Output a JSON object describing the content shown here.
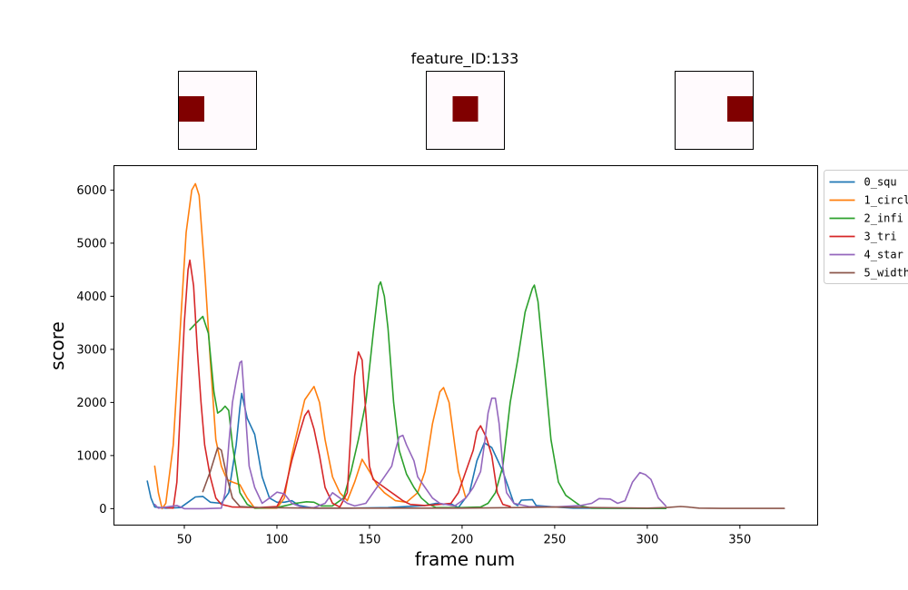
{
  "chart_data": {
    "type": "line",
    "title": "feature_ID:133",
    "xlabel": "frame num",
    "ylabel": "score",
    "xlim": [
      12,
      392
    ],
    "ylim": [
      -310,
      6460
    ],
    "xticks": [
      50,
      100,
      150,
      200,
      250,
      300,
      350
    ],
    "yticks": [
      0,
      1000,
      2000,
      3000,
      4000,
      5000,
      6000
    ],
    "grid": false,
    "legend_position": "outside-right-top",
    "thumbnails": [
      {
        "label": "thumb-left",
        "marker_position": "left",
        "bg_color": "#fffafd",
        "marker_color": "#800000"
      },
      {
        "label": "thumb-center",
        "marker_position": "center",
        "bg_color": "#fffafd",
        "marker_color": "#800000"
      },
      {
        "label": "thumb-right",
        "marker_position": "right",
        "bg_color": "#fffafd",
        "marker_color": "#800000"
      }
    ],
    "series": [
      {
        "name": "0_squ",
        "color": "#1f77b4",
        "points": [
          [
            30,
            520
          ],
          [
            32,
            200
          ],
          [
            34,
            30
          ],
          [
            40,
            10
          ],
          [
            48,
            20
          ],
          [
            52,
            120
          ],
          [
            56,
            220
          ],
          [
            60,
            230
          ],
          [
            64,
            120
          ],
          [
            70,
            100
          ],
          [
            74,
            300
          ],
          [
            78,
            1200
          ],
          [
            80,
            1900
          ],
          [
            81,
            2170
          ],
          [
            84,
            1700
          ],
          [
            86,
            1550
          ],
          [
            88,
            1400
          ],
          [
            92,
            600
          ],
          [
            96,
            200
          ],
          [
            100,
            120
          ],
          [
            104,
            120
          ],
          [
            108,
            150
          ],
          [
            112,
            60
          ],
          [
            120,
            10
          ],
          [
            140,
            10
          ],
          [
            160,
            20
          ],
          [
            180,
            60
          ],
          [
            186,
            100
          ],
          [
            190,
            80
          ],
          [
            194,
            90
          ],
          [
            198,
            20
          ],
          [
            204,
            300
          ],
          [
            208,
            900
          ],
          [
            212,
            1240
          ],
          [
            216,
            1150
          ],
          [
            222,
            700
          ],
          [
            226,
            300
          ],
          [
            228,
            100
          ],
          [
            230,
            60
          ],
          [
            232,
            160
          ],
          [
            238,
            170
          ],
          [
            240,
            60
          ],
          [
            250,
            30
          ],
          [
            260,
            10
          ],
          [
            300,
            5
          ],
          [
            310,
            5
          ]
        ]
      },
      {
        "name": "1_circl",
        "color": "#ff7f0e",
        "points": [
          [
            34,
            800
          ],
          [
            36,
            300
          ],
          [
            38,
            0
          ],
          [
            40,
            100
          ],
          [
            44,
            1200
          ],
          [
            48,
            3500
          ],
          [
            51,
            5200
          ],
          [
            54,
            6000
          ],
          [
            56,
            6120
          ],
          [
            58,
            5900
          ],
          [
            61,
            4500
          ],
          [
            64,
            2800
          ],
          [
            67,
            1300
          ],
          [
            70,
            800
          ],
          [
            73,
            550
          ],
          [
            76,
            500
          ],
          [
            80,
            450
          ],
          [
            84,
            200
          ],
          [
            88,
            10
          ],
          [
            100,
            10
          ],
          [
            104,
            200
          ],
          [
            108,
            1000
          ],
          [
            112,
            1600
          ],
          [
            115,
            2050
          ],
          [
            118,
            2200
          ],
          [
            120,
            2300
          ],
          [
            123,
            2000
          ],
          [
            126,
            1300
          ],
          [
            130,
            600
          ],
          [
            134,
            300
          ],
          [
            138,
            150
          ],
          [
            142,
            500
          ],
          [
            146,
            930
          ],
          [
            150,
            700
          ],
          [
            154,
            450
          ],
          [
            158,
            300
          ],
          [
            164,
            150
          ],
          [
            170,
            120
          ],
          [
            176,
            300
          ],
          [
            180,
            700
          ],
          [
            184,
            1600
          ],
          [
            188,
            2200
          ],
          [
            190,
            2280
          ],
          [
            193,
            2000
          ],
          [
            196,
            1200
          ],
          [
            198,
            700
          ],
          [
            202,
            200
          ]
        ]
      },
      {
        "name": "2_infi",
        "color": "#2ca02c",
        "points": [
          [
            53,
            3370
          ],
          [
            56,
            3480
          ],
          [
            60,
            3620
          ],
          [
            63,
            3300
          ],
          [
            66,
            2200
          ],
          [
            68,
            1800
          ],
          [
            70,
            1850
          ],
          [
            72,
            1930
          ],
          [
            74,
            1850
          ],
          [
            76,
            1200
          ],
          [
            80,
            300
          ],
          [
            84,
            80
          ],
          [
            88,
            10
          ],
          [
            100,
            20
          ],
          [
            110,
            100
          ],
          [
            116,
            130
          ],
          [
            120,
            120
          ],
          [
            124,
            50
          ],
          [
            130,
            50
          ],
          [
            136,
            200
          ],
          [
            140,
            700
          ],
          [
            144,
            1300
          ],
          [
            148,
            2000
          ],
          [
            152,
            3300
          ],
          [
            155,
            4200
          ],
          [
            156,
            4270
          ],
          [
            158,
            4000
          ],
          [
            160,
            3400
          ],
          [
            163,
            2000
          ],
          [
            166,
            1100
          ],
          [
            170,
            650
          ],
          [
            174,
            400
          ],
          [
            178,
            200
          ],
          [
            182,
            80
          ],
          [
            186,
            20
          ],
          [
            200,
            20
          ],
          [
            210,
            30
          ],
          [
            214,
            100
          ],
          [
            218,
            300
          ],
          [
            222,
            800
          ],
          [
            226,
            2000
          ],
          [
            230,
            2800
          ],
          [
            234,
            3700
          ],
          [
            238,
            4150
          ],
          [
            239,
            4210
          ],
          [
            241,
            3900
          ],
          [
            244,
            2800
          ],
          [
            248,
            1300
          ],
          [
            252,
            500
          ],
          [
            256,
            250
          ],
          [
            260,
            150
          ],
          [
            264,
            50
          ],
          [
            270,
            10
          ],
          [
            300,
            5
          ],
          [
            310,
            5
          ]
        ]
      },
      {
        "name": "3_tri",
        "color": "#d62728",
        "points": [
          [
            40,
            20
          ],
          [
            44,
            10
          ],
          [
            46,
            500
          ],
          [
            48,
            2000
          ],
          [
            50,
            3500
          ],
          [
            52,
            4500
          ],
          [
            53,
            4680
          ],
          [
            55,
            4200
          ],
          [
            57,
            3000
          ],
          [
            59,
            2000
          ],
          [
            61,
            1200
          ],
          [
            64,
            600
          ],
          [
            67,
            200
          ],
          [
            70,
            80
          ],
          [
            76,
            30
          ],
          [
            90,
            20
          ],
          [
            100,
            40
          ],
          [
            104,
            300
          ],
          [
            108,
            900
          ],
          [
            112,
            1400
          ],
          [
            115,
            1750
          ],
          [
            117,
            1850
          ],
          [
            120,
            1500
          ],
          [
            123,
            1000
          ],
          [
            126,
            400
          ],
          [
            130,
            100
          ],
          [
            134,
            30
          ],
          [
            138,
            300
          ],
          [
            140,
            1500
          ],
          [
            142,
            2500
          ],
          [
            144,
            2950
          ],
          [
            146,
            2800
          ],
          [
            148,
            1800
          ],
          [
            150,
            800
          ],
          [
            152,
            550
          ],
          [
            156,
            450
          ],
          [
            160,
            350
          ],
          [
            164,
            250
          ],
          [
            168,
            150
          ],
          [
            172,
            80
          ],
          [
            180,
            60
          ],
          [
            188,
            80
          ],
          [
            194,
            100
          ],
          [
            198,
            300
          ],
          [
            202,
            700
          ],
          [
            206,
            1100
          ],
          [
            208,
            1450
          ],
          [
            210,
            1560
          ],
          [
            213,
            1350
          ],
          [
            216,
            1000
          ],
          [
            219,
            300
          ],
          [
            222,
            80
          ],
          [
            226,
            40
          ]
        ]
      },
      {
        "name": "4_star",
        "color": "#9467bd",
        "points": [
          [
            34,
            80
          ],
          [
            36,
            10
          ],
          [
            46,
            60
          ],
          [
            50,
            0
          ],
          [
            60,
            0
          ],
          [
            70,
            10
          ],
          [
            72,
            300
          ],
          [
            74,
            1200
          ],
          [
            76,
            2000
          ],
          [
            78,
            2400
          ],
          [
            80,
            2750
          ],
          [
            81,
            2780
          ],
          [
            83,
            1800
          ],
          [
            85,
            800
          ],
          [
            88,
            400
          ],
          [
            92,
            100
          ],
          [
            96,
            200
          ],
          [
            100,
            310
          ],
          [
            104,
            280
          ],
          [
            108,
            100
          ],
          [
            114,
            20
          ],
          [
            120,
            20
          ],
          [
            126,
            100
          ],
          [
            130,
            300
          ],
          [
            134,
            200
          ],
          [
            138,
            100
          ],
          [
            142,
            50
          ],
          [
            148,
            100
          ],
          [
            152,
            300
          ],
          [
            158,
            600
          ],
          [
            162,
            800
          ],
          [
            164,
            1100
          ],
          [
            166,
            1350
          ],
          [
            168,
            1380
          ],
          [
            170,
            1200
          ],
          [
            174,
            900
          ],
          [
            176,
            600
          ],
          [
            180,
            400
          ],
          [
            184,
            200
          ],
          [
            188,
            100
          ],
          [
            196,
            50
          ],
          [
            202,
            200
          ],
          [
            206,
            400
          ],
          [
            210,
            700
          ],
          [
            212,
            1200
          ],
          [
            214,
            1800
          ],
          [
            216,
            2080
          ],
          [
            218,
            2080
          ],
          [
            220,
            1600
          ],
          [
            222,
            800
          ],
          [
            224,
            300
          ],
          [
            228,
            100
          ],
          [
            236,
            40
          ],
          [
            250,
            30
          ],
          [
            264,
            60
          ],
          [
            270,
            100
          ],
          [
            274,
            190
          ],
          [
            280,
            180
          ],
          [
            284,
            100
          ],
          [
            288,
            150
          ],
          [
            292,
            500
          ],
          [
            296,
            680
          ],
          [
            299,
            640
          ],
          [
            302,
            550
          ],
          [
            306,
            200
          ],
          [
            310,
            50
          ]
        ]
      },
      {
        "name": "5_width",
        "color": "#8c564b",
        "points": [
          [
            60,
            320
          ],
          [
            64,
            700
          ],
          [
            68,
            1150
          ],
          [
            70,
            1100
          ],
          [
            73,
            600
          ],
          [
            76,
            200
          ],
          [
            80,
            40
          ],
          [
            90,
            20
          ],
          [
            120,
            10
          ],
          [
            200,
            10
          ],
          [
            230,
            20
          ],
          [
            250,
            30
          ],
          [
            270,
            20
          ],
          [
            300,
            10
          ],
          [
            310,
            20
          ],
          [
            318,
            40
          ],
          [
            322,
            30
          ],
          [
            328,
            10
          ],
          [
            340,
            5
          ],
          [
            360,
            5
          ],
          [
            374,
            5
          ]
        ]
      }
    ]
  }
}
